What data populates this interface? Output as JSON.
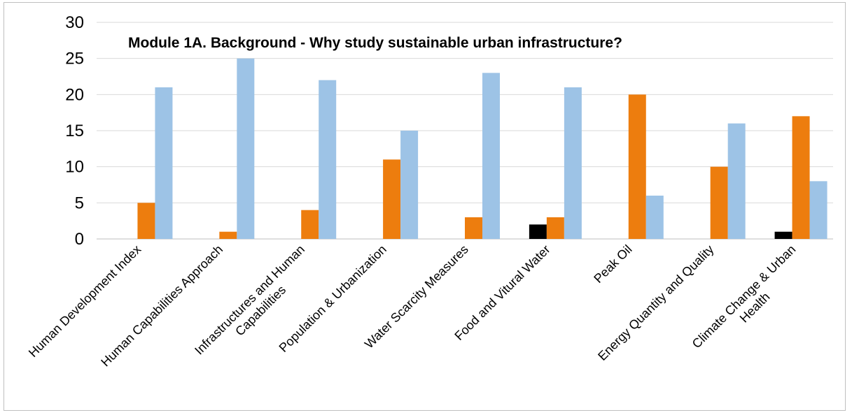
{
  "chart_data": {
    "type": "bar",
    "title": "Module 1A. Background - Why study sustainable urban infrastructure?",
    "categories": [
      [
        "Human Development Index"
      ],
      [
        "Human Capabilities Approach"
      ],
      [
        "Infrastructures and Human",
        "Capabilities"
      ],
      [
        "Population & Urbanization"
      ],
      [
        "Water Scarcity Measures"
      ],
      [
        "Food and Vitural Water"
      ],
      [
        "Peak Oil"
      ],
      [
        "Energy Quantity and Quality"
      ],
      [
        "Climate Change & Urban",
        "Health"
      ]
    ],
    "series": [
      {
        "color": "#000000",
        "values": [
          0,
          0,
          0,
          0,
          0,
          2,
          0,
          0,
          1
        ]
      },
      {
        "color": "#ed7d0e",
        "values": [
          5,
          1,
          4,
          11,
          3,
          3,
          20,
          10,
          17
        ]
      },
      {
        "color": "#9dc3e6",
        "values": [
          21,
          25,
          22,
          15,
          23,
          21,
          6,
          16,
          8
        ]
      }
    ],
    "yticks": [
      0,
      5,
      10,
      15,
      20,
      25,
      30
    ],
    "ylim": [
      0,
      30
    ],
    "grid": true,
    "legend": "none"
  }
}
